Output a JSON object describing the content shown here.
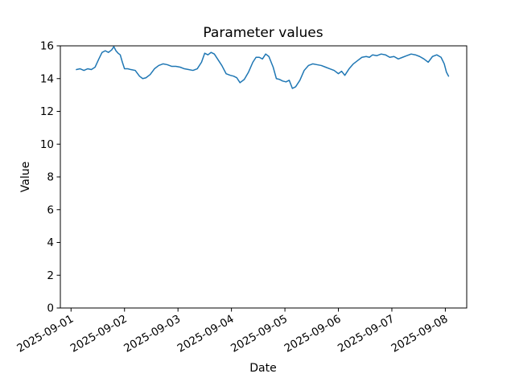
{
  "chart_data": {
    "type": "line",
    "title": "Parameter values",
    "xlabel": "Date",
    "ylabel": "Value",
    "ylim": [
      0,
      16
    ],
    "xlim": [
      -0.2,
      7.4
    ],
    "yticks": [
      0,
      2,
      4,
      6,
      8,
      10,
      12,
      14,
      16
    ],
    "xticks": [
      0,
      1,
      2,
      3,
      4,
      5,
      6,
      7
    ],
    "xtick_labels": [
      "2025-09-01",
      "2025-09-02",
      "2025-09-03",
      "2025-09-04",
      "2025-09-05",
      "2025-09-06",
      "2025-09-07",
      "2025-09-08"
    ],
    "grid": false,
    "legend": "none",
    "line_color": "#1f77b4",
    "series": [
      {
        "name": "Parameter values",
        "x": [
          0.1,
          0.17,
          0.24,
          0.31,
          0.38,
          0.45,
          0.52,
          0.58,
          0.64,
          0.7,
          0.76,
          0.8,
          0.84,
          0.88,
          0.92,
          0.96,
          1.0,
          1.06,
          1.12,
          1.2,
          1.28,
          1.34,
          1.4,
          1.48,
          1.56,
          1.64,
          1.72,
          1.8,
          1.88,
          1.96,
          2.04,
          2.12,
          2.2,
          2.28,
          2.36,
          2.44,
          2.5,
          2.56,
          2.62,
          2.68,
          2.74,
          2.82,
          2.9,
          2.98,
          3.04,
          3.1,
          3.16,
          3.24,
          3.32,
          3.4,
          3.46,
          3.52,
          3.58,
          3.64,
          3.7,
          3.78,
          3.84,
          3.9,
          3.96,
          4.02,
          4.08,
          4.14,
          4.2,
          4.28,
          4.36,
          4.44,
          4.52,
          4.6,
          4.68,
          4.76,
          4.84,
          4.92,
          5.0,
          5.06,
          5.12,
          5.2,
          5.28,
          5.36,
          5.44,
          5.52,
          5.58,
          5.64,
          5.72,
          5.8,
          5.88,
          5.96,
          6.04,
          6.12,
          6.2,
          6.28,
          6.36,
          6.44,
          6.52,
          6.6,
          6.68,
          6.76,
          6.84,
          6.92,
          6.98,
          7.02,
          7.06
        ],
        "y": [
          14.55,
          14.6,
          14.5,
          14.6,
          14.55,
          14.7,
          15.2,
          15.6,
          15.7,
          15.6,
          15.75,
          15.95,
          15.7,
          15.55,
          15.45,
          15.0,
          14.6,
          14.6,
          14.55,
          14.5,
          14.15,
          14.0,
          14.05,
          14.25,
          14.6,
          14.8,
          14.9,
          14.85,
          14.75,
          14.75,
          14.7,
          14.6,
          14.55,
          14.5,
          14.6,
          15.0,
          15.55,
          15.45,
          15.6,
          15.5,
          15.2,
          14.8,
          14.3,
          14.2,
          14.15,
          14.05,
          13.75,
          13.95,
          14.4,
          15.0,
          15.3,
          15.3,
          15.2,
          15.5,
          15.35,
          14.7,
          14.0,
          13.95,
          13.85,
          13.8,
          13.9,
          13.4,
          13.5,
          13.9,
          14.5,
          14.8,
          14.9,
          14.85,
          14.8,
          14.7,
          14.6,
          14.5,
          14.3,
          14.45,
          14.2,
          14.6,
          14.9,
          15.1,
          15.3,
          15.35,
          15.3,
          15.45,
          15.4,
          15.5,
          15.45,
          15.3,
          15.35,
          15.2,
          15.3,
          15.4,
          15.5,
          15.45,
          15.35,
          15.2,
          15.0,
          15.35,
          15.45,
          15.3,
          14.9,
          14.4,
          14.15
        ]
      }
    ]
  }
}
